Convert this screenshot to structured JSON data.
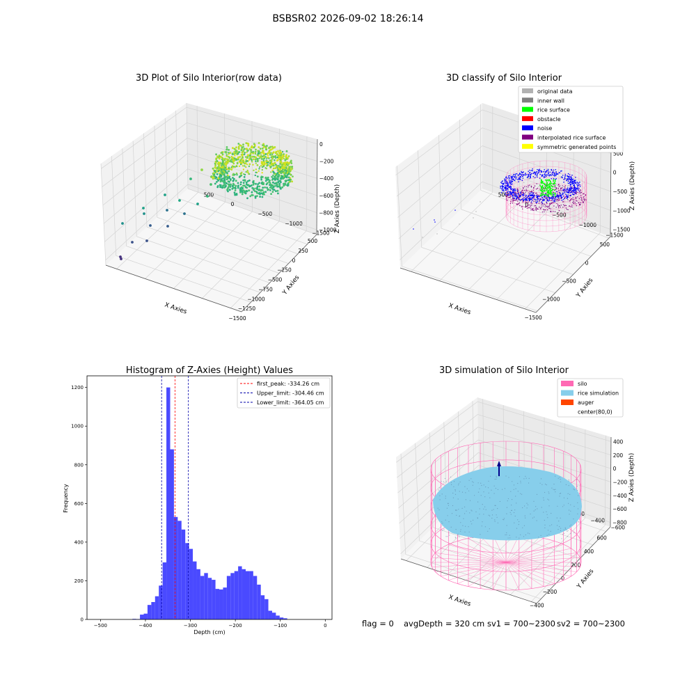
{
  "suptitle": "BSBSR02 2026-09-02 18:26:14",
  "footer": {
    "flag": "flag = 0",
    "avg_depth": "avgDepth = 320 cm",
    "sv1": "sv1 = 700~2300",
    "sv2": "sv2 = 700~2300"
  },
  "colors": {
    "gray_original": "#b2b2b2",
    "inner_wall": "#808080",
    "rice_surface": "#00ff00",
    "obstacle": "#ff0000",
    "noise": "#0000ff",
    "interpolated": "#800080",
    "symmetric": "#ffff00",
    "silo": "#ff69b4",
    "rice_sim": "#87ceeb",
    "auger": "#ff4500",
    "hist_bar": "#4a4aff"
  },
  "chart_data": [
    {
      "type": "scatter",
      "subtype": "3d",
      "title": "3D Plot of Silo Interior(row data)",
      "xlabel": "X Axies",
      "ylabel": "Y Axies",
      "zlabel": "Z Axies (Depth)",
      "x_ticks": [
        "−1500",
        "−1250",
        "−1000",
        "−750",
        "−500",
        "−250",
        "0",
        "250",
        "500"
      ],
      "y_ticks": [
        "500",
        "0",
        "−500",
        "−1000",
        "−1500"
      ],
      "z_ticks": [
        "0",
        "−200",
        "−400",
        "−600",
        "−800",
        "−1000"
      ],
      "xlim": [
        -1500,
        600
      ],
      "ylim": [
        -1700,
        700
      ],
      "zlim": [
        -1100,
        0
      ],
      "colormap": "viridis"
    },
    {
      "type": "scatter",
      "subtype": "3d",
      "title": "3D classify of Silo Interior",
      "xlabel": "X Axies",
      "ylabel": "Y Axies",
      "zlabel": "Z Axies (Depth)",
      "x_ticks": [
        "−1500",
        "−1000",
        "−500",
        "0",
        "500"
      ],
      "y_ticks": [
        "500",
        "0",
        "−500",
        "−1000",
        "−1500"
      ],
      "z_ticks": [
        "500",
        "0",
        "−500",
        "−1000",
        "−1500"
      ],
      "xlim": [
        -1500,
        600
      ],
      "ylim": [
        -1700,
        700
      ],
      "zlim": [
        -1500,
        500
      ],
      "legend_position": "top-right",
      "legend": [
        {
          "label": "original data",
          "color": "#b2b2b2"
        },
        {
          "label": "inner wall",
          "color": "#808080"
        },
        {
          "label": "rice surface",
          "color": "#00ff00"
        },
        {
          "label": "obstacle",
          "color": "#ff0000"
        },
        {
          "label": "noise",
          "color": "#0000ff"
        },
        {
          "label": "interpolated rice surface",
          "color": "#800080"
        },
        {
          "label": "symmetric generated points",
          "color": "#ffff00"
        }
      ]
    },
    {
      "type": "bar",
      "subtype": "histogram",
      "title": "Histogram of Z-Axies (Height) Values",
      "xlabel": "Depth (cm)",
      "ylabel": "Frequency",
      "xlim": [
        -530,
        15
      ],
      "ylim": [
        0,
        1260
      ],
      "x_ticks": [
        -500,
        -400,
        -300,
        -200,
        -100,
        0
      ],
      "x_tick_labels": [
        "−500",
        "−400",
        "−300",
        "−200",
        "−100",
        "0"
      ],
      "y_ticks": [
        0,
        200,
        400,
        600,
        800,
        1000,
        1200
      ],
      "y_tick_labels": [
        "0",
        "200",
        "400",
        "600",
        "800",
        "1000",
        "1200"
      ],
      "bin_width": 8.4,
      "bins_start": -429,
      "values": [
        3,
        2,
        25,
        30,
        75,
        90,
        120,
        175,
        295,
        1200,
        880,
        530,
        510,
        465,
        395,
        365,
        300,
        260,
        225,
        240,
        215,
        205,
        158,
        155,
        165,
        225,
        240,
        250,
        275,
        260,
        250,
        250,
        225,
        180,
        125,
        105,
        45,
        35,
        20,
        10,
        6
      ],
      "vlines": [
        {
          "x": -334.26,
          "color": "#ff0000",
          "label": "first_peak: -334.26 cm"
        },
        {
          "x": -304.46,
          "color": "#0000aa",
          "label": "Upper_limit: -304.46 cm"
        },
        {
          "x": -364.05,
          "color": "#0000aa",
          "label": "Lower_limit: -364.05 cm"
        }
      ],
      "legend_position": "top-right"
    },
    {
      "type": "scatter",
      "subtype": "3d",
      "title": "3D simulation of Silo Interior",
      "xlabel": "X Axies",
      "ylabel": "Y Axies",
      "zlabel": "Z Axies (Depth)",
      "x_ticks": [
        "−400",
        "−200",
        "0",
        "200",
        "400",
        "600"
      ],
      "y_ticks": [
        "600",
        "400",
        "200",
        "0",
        "−200",
        "−400",
        "−600"
      ],
      "z_ticks": [
        "400",
        "200",
        "0",
        "−200",
        "−400",
        "−600",
        "−800"
      ],
      "xlim": [
        -500,
        700
      ],
      "ylim": [
        -700,
        700
      ],
      "zlim": [
        -900,
        500
      ],
      "legend_position": "top-right",
      "legend": [
        {
          "label": "silo",
          "color": "#ff69b4"
        },
        {
          "label": "rice simulation",
          "color": "#87ceeb"
        },
        {
          "label": "auger",
          "color": "#ff4500"
        },
        {
          "label": "center(80,0)",
          "color": "#ffffff"
        }
      ]
    }
  ]
}
